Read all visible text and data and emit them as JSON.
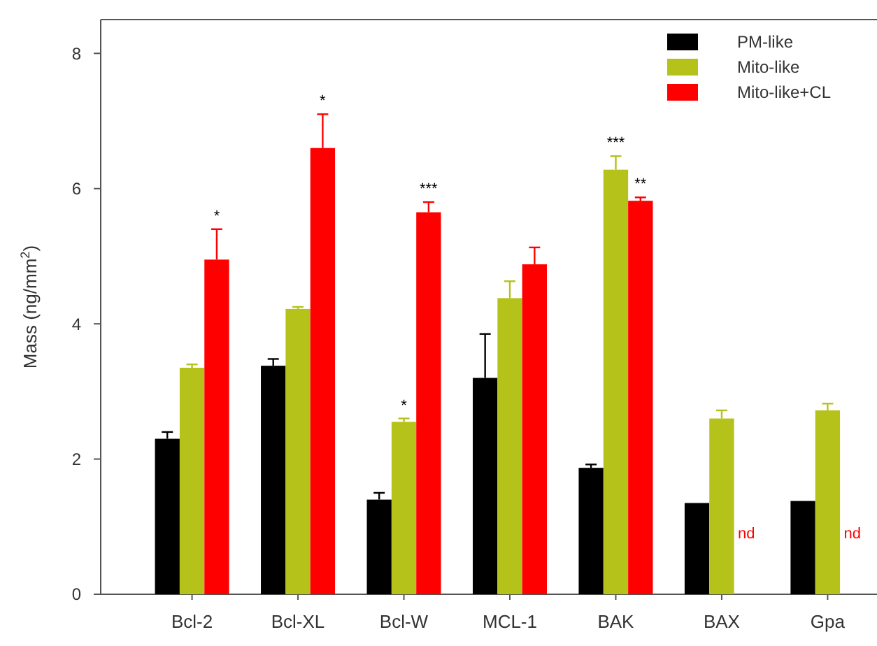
{
  "chart_data": {
    "type": "bar",
    "ylabel": "Mass (ng/mm$^{2}$)",
    "categories": [
      "Bcl-2",
      "Bcl-XL",
      "Bcl-W",
      "MCL-1",
      "BAK",
      "BAX",
      "Gpa"
    ],
    "series": [
      {
        "name": "PM-like",
        "color": "#000000",
        "values": [
          2.3,
          3.38,
          1.4,
          3.2,
          1.87,
          1.35,
          1.38
        ],
        "errors": [
          0.1,
          0.1,
          0.1,
          0.65,
          0.05,
          null,
          null
        ]
      },
      {
        "name": "Mito-like",
        "color": "#b5c21a",
        "values": [
          3.35,
          4.22,
          2.55,
          4.38,
          6.28,
          2.6,
          2.72
        ],
        "errors": [
          0.05,
          0.03,
          0.05,
          0.25,
          0.2,
          0.12,
          0.1
        ]
      },
      {
        "name": "Mito-like+CL",
        "color": "#ff0000",
        "values": [
          4.95,
          6.6,
          5.65,
          4.88,
          5.82,
          null,
          null
        ],
        "errors": [
          0.45,
          0.5,
          0.15,
          0.25,
          0.05,
          null,
          null
        ]
      }
    ],
    "ylim": [
      0,
      8.5
    ],
    "yticks": [
      0,
      2,
      4,
      6,
      8
    ],
    "legend": "top right",
    "annotations": [
      "*",
      "*",
      {
        "text": "*",
        "x": "Bcl-W",
        "y": 2.55
      },
      "***",
      {
        "text": "***",
        "x": "BAK",
        "y": 6.28
      },
      "**",
      "nd",
      "nd"
    ]
  }
}
